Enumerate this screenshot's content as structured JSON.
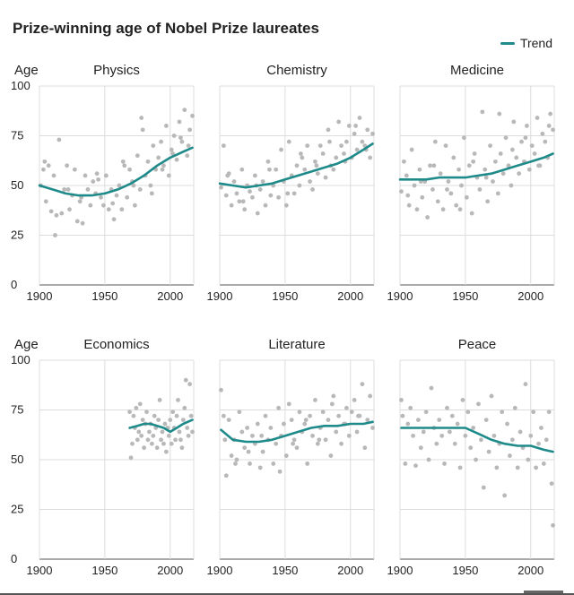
{
  "title": "Prize-winning age of Nobel Prize laureates",
  "legend": {
    "label": "Trend",
    "color": "#1f8a8a"
  },
  "y_axis_label": "Age",
  "chart_data": [
    {
      "type": "scatter",
      "title": "Physics",
      "xlim": [
        1900,
        2018
      ],
      "ylim": [
        0,
        100
      ],
      "x_ticks": [
        1900,
        1950,
        2000
      ],
      "y_ticks": [
        0,
        25,
        50,
        75,
        100
      ],
      "points_x": [
        1901,
        1903,
        1905,
        1907,
        1909,
        1911,
        1913,
        1915,
        1917,
        1919,
        1921,
        1923,
        1925,
        1927,
        1929,
        1931,
        1933,
        1935,
        1937,
        1939,
        1941,
        1943,
        1945,
        1947,
        1949,
        1951,
        1953,
        1955,
        1957,
        1959,
        1961,
        1963,
        1965,
        1967,
        1969,
        1971,
        1973,
        1975,
        1977,
        1979,
        1981,
        1983,
        1985,
        1987,
        1989,
        1991,
        1993,
        1995,
        1997,
        1999,
        2001,
        2003,
        2005,
        2007,
        2009,
        2011,
        2013,
        2015,
        2017,
        1904,
        1912,
        1922,
        1932,
        1944,
        1956,
        1964,
        1972,
        1978,
        1986,
        1994,
        2002,
        2008,
        2014
      ],
      "points_y": [
        50,
        58,
        42,
        60,
        37,
        55,
        35,
        73,
        36,
        48,
        60,
        38,
        45,
        58,
        32,
        42,
        31,
        55,
        48,
        40,
        52,
        46,
        53,
        44,
        40,
        55,
        38,
        48,
        33,
        45,
        50,
        38,
        60,
        44,
        58,
        52,
        40,
        65,
        48,
        78,
        55,
        62,
        50,
        70,
        58,
        64,
        72,
        60,
        80,
        55,
        68,
        75,
        63,
        82,
        72,
        88,
        65,
        78,
        85,
        62,
        25,
        48,
        44,
        56,
        41,
        62,
        50,
        84,
        46,
        58,
        66,
        74,
        70
      ],
      "trend_x": [
        1900,
        1910,
        1920,
        1930,
        1940,
        1950,
        1960,
        1970,
        1980,
        1990,
        2000,
        2010,
        2017
      ],
      "trend_y": [
        50,
        48,
        46,
        45,
        45,
        46,
        48,
        51,
        55,
        60,
        64,
        67,
        69
      ]
    },
    {
      "type": "scatter",
      "title": "Chemistry",
      "xlim": [
        1900,
        2018
      ],
      "ylim": [
        0,
        100
      ],
      "x_ticks": [
        1900,
        1950,
        2000
      ],
      "y_ticks": [
        0,
        25,
        50,
        75,
        100
      ],
      "points_x": [
        1901,
        1903,
        1905,
        1907,
        1909,
        1911,
        1913,
        1915,
        1917,
        1919,
        1921,
        1923,
        1925,
        1927,
        1929,
        1931,
        1933,
        1935,
        1937,
        1939,
        1941,
        1943,
        1945,
        1947,
        1949,
        1951,
        1953,
        1955,
        1957,
        1959,
        1961,
        1963,
        1965,
        1967,
        1969,
        1971,
        1973,
        1975,
        1977,
        1979,
        1981,
        1983,
        1985,
        1987,
        1989,
        1991,
        1993,
        1995,
        1997,
        1999,
        2001,
        2003,
        2005,
        2007,
        2009,
        2011,
        2013,
        2015,
        2017,
        1906,
        1918,
        1928,
        1938,
        1952,
        1962,
        1974,
        1984,
        1996,
        2004,
        2012
      ],
      "points_y": [
        49,
        70,
        45,
        56,
        40,
        52,
        46,
        42,
        58,
        38,
        50,
        47,
        44,
        55,
        36,
        48,
        52,
        40,
        62,
        45,
        50,
        58,
        44,
        68,
        52,
        40,
        72,
        55,
        46,
        60,
        50,
        64,
        58,
        70,
        52,
        48,
        62,
        56,
        70,
        66,
        54,
        78,
        60,
        58,
        64,
        82,
        70,
        66,
        72,
        80,
        64,
        76,
        68,
        84,
        72,
        70,
        78,
        64,
        76,
        55,
        42,
        50,
        58,
        46,
        66,
        60,
        72,
        62,
        80,
        68
      ],
      "trend_x": [
        1900,
        1910,
        1920,
        1930,
        1940,
        1950,
        1960,
        1970,
        1980,
        1990,
        2000,
        2010,
        2017
      ],
      "trend_y": [
        51,
        50,
        49,
        50,
        51,
        53,
        55,
        57,
        59,
        61,
        64,
        68,
        71
      ]
    },
    {
      "type": "scatter",
      "title": "Medicine",
      "xlim": [
        1900,
        2018
      ],
      "ylim": [
        0,
        100
      ],
      "x_ticks": [
        1900,
        1950,
        2000
      ],
      "y_ticks": [
        0,
        25,
        50,
        75,
        100
      ],
      "points_x": [
        1901,
        1903,
        1905,
        1907,
        1909,
        1911,
        1913,
        1915,
        1917,
        1919,
        1921,
        1923,
        1925,
        1927,
        1929,
        1931,
        1933,
        1935,
        1937,
        1939,
        1941,
        1943,
        1945,
        1947,
        1949,
        1951,
        1953,
        1955,
        1957,
        1959,
        1961,
        1963,
        1965,
        1967,
        1969,
        1971,
        1973,
        1975,
        1977,
        1979,
        1981,
        1983,
        1985,
        1987,
        1989,
        1991,
        1993,
        1995,
        1997,
        1999,
        2001,
        2003,
        2005,
        2007,
        2009,
        2011,
        2013,
        2015,
        2017,
        1906,
        1916,
        1926,
        1936,
        1946,
        1956,
        1966,
        1976,
        1986,
        1996,
        2006,
        2014
      ],
      "points_y": [
        47,
        62,
        55,
        40,
        68,
        50,
        38,
        58,
        44,
        52,
        34,
        60,
        48,
        72,
        42,
        56,
        38,
        70,
        52,
        46,
        64,
        40,
        58,
        50,
        74,
        44,
        60,
        36,
        66,
        54,
        48,
        87,
        58,
        42,
        70,
        52,
        62,
        46,
        66,
        56,
        74,
        60,
        50,
        82,
        64,
        56,
        72,
        62,
        80,
        58,
        70,
        66,
        84,
        60,
        76,
        72,
        64,
        86,
        78,
        45,
        52,
        60,
        48,
        38,
        62,
        54,
        86,
        68,
        74,
        60,
        80
      ],
      "trend_x": [
        1900,
        1910,
        1920,
        1930,
        1940,
        1950,
        1960,
        1970,
        1980,
        1990,
        2000,
        2010,
        2017
      ],
      "trend_y": [
        53,
        53,
        53,
        54,
        54,
        54,
        55,
        56,
        58,
        60,
        62,
        64,
        66
      ]
    },
    {
      "type": "scatter",
      "title": "Economics",
      "xlim": [
        1900,
        2018
      ],
      "ylim": [
        0,
        100
      ],
      "x_ticks": [
        1900,
        1950,
        2000
      ],
      "y_ticks": [
        0,
        25,
        50,
        75,
        100
      ],
      "points_x": [
        1969,
        1970,
        1971,
        1972,
        1973,
        1974,
        1975,
        1976,
        1977,
        1978,
        1979,
        1980,
        1981,
        1982,
        1983,
        1984,
        1985,
        1986,
        1987,
        1988,
        1989,
        1990,
        1991,
        1992,
        1993,
        1994,
        1995,
        1996,
        1997,
        1998,
        1999,
        2000,
        2001,
        2002,
        2003,
        2004,
        2005,
        2006,
        2007,
        2008,
        2009,
        2010,
        2011,
        2012,
        2013,
        2014,
        2015,
        2016,
        2017
      ],
      "points_y": [
        74,
        51,
        58,
        72,
        66,
        76,
        60,
        64,
        78,
        62,
        70,
        56,
        68,
        74,
        60,
        64,
        68,
        58,
        62,
        72,
        66,
        56,
        70,
        80,
        60,
        64,
        58,
        68,
        54,
        66,
        62,
        70,
        58,
        74,
        66,
        60,
        72,
        80,
        64,
        60,
        56,
        70,
        76,
        90,
        66,
        62,
        88,
        72,
        64
      ],
      "trend_x": [
        1969,
        1975,
        1980,
        1985,
        1990,
        1995,
        2000,
        2005,
        2010,
        2017
      ],
      "trend_y": [
        66,
        67,
        68,
        68,
        67,
        66,
        64,
        66,
        68,
        70
      ]
    },
    {
      "type": "scatter",
      "title": "Literature",
      "xlim": [
        1900,
        2018
      ],
      "ylim": [
        0,
        100
      ],
      "x_ticks": [
        1900,
        1950,
        2000
      ],
      "y_ticks": [
        0,
        25,
        50,
        75,
        100
      ],
      "points_x": [
        1901,
        1903,
        1905,
        1907,
        1909,
        1911,
        1913,
        1915,
        1917,
        1919,
        1921,
        1923,
        1925,
        1927,
        1929,
        1931,
        1933,
        1935,
        1937,
        1939,
        1941,
        1943,
        1945,
        1947,
        1949,
        1951,
        1953,
        1955,
        1957,
        1959,
        1961,
        1963,
        1965,
        1967,
        1969,
        1971,
        1973,
        1975,
        1977,
        1979,
        1981,
        1983,
        1985,
        1987,
        1989,
        1991,
        1993,
        1995,
        1997,
        1999,
        2001,
        2003,
        2005,
        2007,
        2009,
        2011,
        2013,
        2015,
        2017,
        1904,
        1912,
        1922,
        1932,
        1946,
        1956,
        1966,
        1976,
        1986,
        1996,
        2006
      ],
      "points_y": [
        85,
        72,
        42,
        70,
        52,
        60,
        50,
        74,
        64,
        56,
        66,
        48,
        62,
        58,
        68,
        46,
        54,
        72,
        60,
        66,
        48,
        58,
        76,
        62,
        68,
        52,
        78,
        70,
        60,
        56,
        74,
        64,
        68,
        48,
        72,
        62,
        80,
        58,
        66,
        74,
        60,
        70,
        52,
        82,
        64,
        72,
        58,
        68,
        76,
        62,
        74,
        80,
        64,
        72,
        88,
        56,
        70,
        82,
        66,
        60,
        48,
        54,
        62,
        44,
        58,
        70,
        60,
        78,
        68,
        72
      ],
      "trend_x": [
        1901,
        1910,
        1920,
        1930,
        1940,
        1950,
        1960,
        1970,
        1980,
        1990,
        2000,
        2010,
        2017
      ],
      "trend_y": [
        65,
        60,
        59,
        59,
        60,
        62,
        64,
        66,
        67,
        67,
        68,
        68,
        69
      ]
    },
    {
      "type": "scatter",
      "title": "Peace",
      "xlim": [
        1900,
        2018
      ],
      "ylim": [
        0,
        100
      ],
      "x_ticks": [
        1900,
        1950,
        2000
      ],
      "y_ticks": [
        0,
        25,
        50,
        75,
        100
      ],
      "points_x": [
        1901,
        1902,
        1904,
        1906,
        1908,
        1910,
        1912,
        1914,
        1916,
        1918,
        1920,
        1922,
        1924,
        1926,
        1928,
        1930,
        1932,
        1934,
        1936,
        1938,
        1940,
        1942,
        1944,
        1946,
        1948,
        1950,
        1952,
        1954,
        1956,
        1958,
        1960,
        1962,
        1964,
        1966,
        1968,
        1970,
        1972,
        1974,
        1976,
        1978,
        1980,
        1982,
        1984,
        1986,
        1988,
        1990,
        1992,
        1994,
        1996,
        1998,
        2000,
        2002,
        2004,
        2006,
        2008,
        2010,
        2012,
        2014,
        2016,
        2017
      ],
      "points_y": [
        80,
        72,
        48,
        68,
        76,
        62,
        47,
        70,
        56,
        64,
        74,
        50,
        86,
        66,
        58,
        70,
        62,
        48,
        76,
        64,
        72,
        58,
        68,
        46,
        80,
        62,
        74,
        56,
        66,
        50,
        78,
        60,
        36,
        70,
        54,
        82,
        62,
        46,
        58,
        74,
        32,
        68,
        52,
        60,
        76,
        46,
        64,
        56,
        88,
        50,
        62,
        74,
        46,
        58,
        66,
        48,
        60,
        74,
        38,
        17
      ],
      "trend_x": [
        1901,
        1910,
        1920,
        1930,
        1940,
        1950,
        1960,
        1970,
        1980,
        1990,
        2000,
        2010,
        2017
      ],
      "trend_y": [
        66,
        66,
        66,
        66,
        66,
        66,
        63,
        60,
        58,
        57,
        57,
        55,
        54
      ]
    }
  ]
}
